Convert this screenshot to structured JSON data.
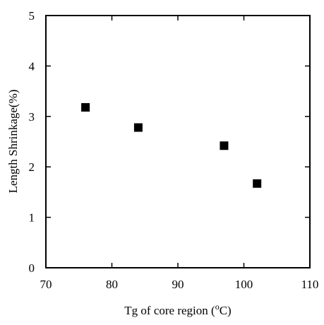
{
  "chart_data": {
    "type": "scatter",
    "title": "",
    "xlabel_prefix": "Tg of core region (",
    "xlabel_sup": "o",
    "xlabel_suffix": "C)",
    "ylabel": "Length Shrinkage(%)",
    "xlim": [
      70,
      110
    ],
    "ylim": [
      0,
      5
    ],
    "x_ticks": [
      70,
      80,
      90,
      100,
      110
    ],
    "y_ticks": [
      0,
      1,
      2,
      3,
      4,
      5
    ],
    "grid": false,
    "marker": "square",
    "marker_color": "#000000",
    "points": [
      {
        "x": 76,
        "y": 3.18
      },
      {
        "x": 84,
        "y": 2.78
      },
      {
        "x": 97,
        "y": 2.42
      },
      {
        "x": 102,
        "y": 1.67
      }
    ]
  }
}
